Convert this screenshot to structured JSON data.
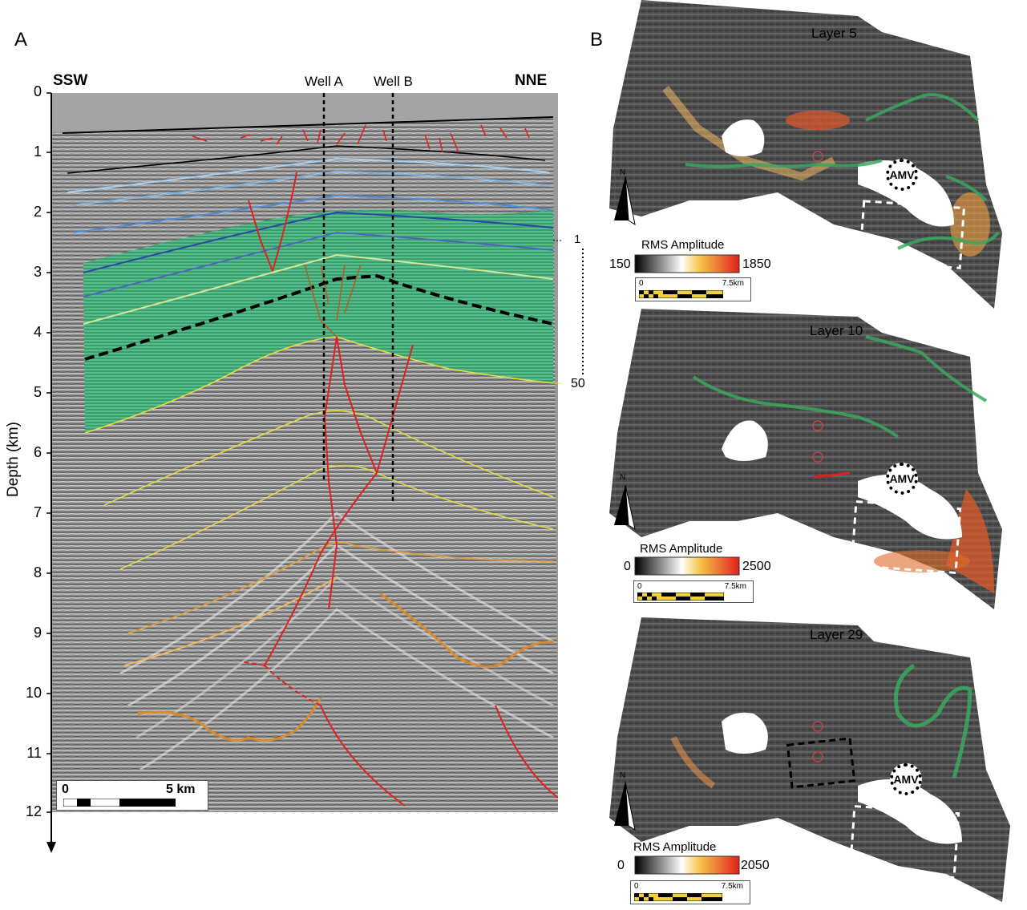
{
  "panel_a": {
    "letter": "A",
    "left_dir": "SSW",
    "right_dir": "NNE",
    "well_a": "Well A",
    "well_b": "Well B",
    "ylabel": "Depth (km)",
    "depth_ticks": [
      "0",
      "1",
      "2",
      "3",
      "4",
      "5",
      "6",
      "7",
      "8",
      "9",
      "10",
      "11",
      "12"
    ],
    "layer_marker_top": "1",
    "layer_marker_bottom": "50",
    "scale_zero": "0",
    "scale_label": "5 km"
  },
  "panel_b": {
    "letter": "B",
    "north": "N",
    "amv": "AMV",
    "maps": [
      {
        "title": "Layer 5",
        "legend_title": "RMS Amplitude",
        "legend_min": "150",
        "legend_max": "1850",
        "scale_zero": "0",
        "scale_label": "7.5km"
      },
      {
        "title": "Layer 10",
        "legend_title": "RMS Amplitude",
        "legend_min": "0",
        "legend_max": "2500",
        "scale_zero": "0",
        "scale_label": "7.5km"
      },
      {
        "title": "Layer 29",
        "legend_title": "RMS Amplitude",
        "legend_min": "0",
        "legend_max": "2050",
        "scale_zero": "0",
        "scale_label": "7.5km"
      }
    ]
  },
  "colors": {
    "seismic_bg": "#8c8c8c",
    "package_green": "#3fae7a",
    "fault_red": "#e0201c",
    "horizon_yellow": "#e8e040",
    "horizon_orange": "#d98a2a",
    "map_dark": "#3a3a3a",
    "channel_green": "#3aa860"
  }
}
